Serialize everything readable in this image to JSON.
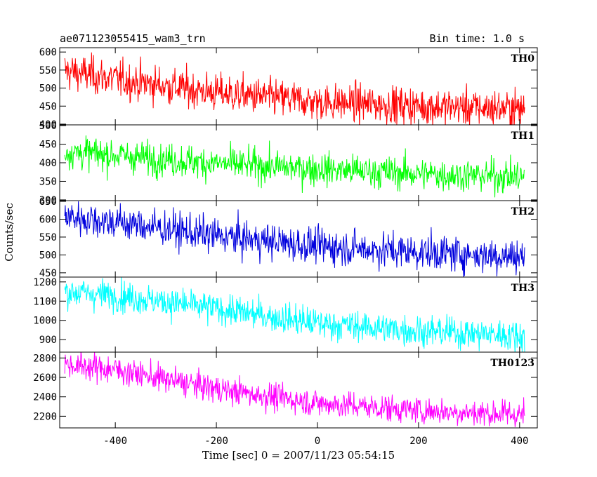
{
  "chart_data": {
    "type": "line",
    "title": "ae071123055415_wam3_trn",
    "bin_time_label": "Bin time: 1.0 s",
    "xlabel": "Time [sec] 0 = 2007/11/23 05:54:15",
    "ylabel": "Counts/sec",
    "xlim": [
      -510,
      435
    ],
    "xticks": [
      -400,
      -200,
      0,
      200,
      400
    ],
    "x_start": -500,
    "x_end": 410,
    "panels": [
      {
        "name": "TH0",
        "color": "#ff0000",
        "ylim": [
          398,
          612
        ],
        "yticks": [
          400,
          450,
          500,
          550,
          600
        ],
        "trend": [
          {
            "x": -500,
            "y": 548
          },
          {
            "x": -400,
            "y": 525
          },
          {
            "x": -200,
            "y": 487
          },
          {
            "x": 0,
            "y": 462
          },
          {
            "x": 200,
            "y": 450
          },
          {
            "x": 410,
            "y": 442
          }
        ],
        "noise": 26
      },
      {
        "name": "TH1",
        "color": "#00ff00",
        "ylim": [
          298,
          502
        ],
        "yticks": [
          300,
          350,
          400,
          450,
          500
        ],
        "trend": [
          {
            "x": -500,
            "y": 430
          },
          {
            "x": -400,
            "y": 420
          },
          {
            "x": -200,
            "y": 398
          },
          {
            "x": 0,
            "y": 383
          },
          {
            "x": 200,
            "y": 370
          },
          {
            "x": 410,
            "y": 362
          }
        ],
        "noise": 22
      },
      {
        "name": "TH2",
        "color": "#0000dd",
        "ylim": [
          438,
          652
        ],
        "yticks": [
          450,
          500,
          550,
          600,
          650
        ],
        "trend": [
          {
            "x": -500,
            "y": 608
          },
          {
            "x": -400,
            "y": 592
          },
          {
            "x": -200,
            "y": 553
          },
          {
            "x": 0,
            "y": 525
          },
          {
            "x": 200,
            "y": 508
          },
          {
            "x": 410,
            "y": 495
          }
        ],
        "noise": 25
      },
      {
        "name": "TH3",
        "color": "#00ffff",
        "ylim": [
          835,
          1225
        ],
        "yticks": [
          900,
          1000,
          1100,
          1200
        ],
        "trend": [
          {
            "x": -500,
            "y": 1150
          },
          {
            "x": -400,
            "y": 1130
          },
          {
            "x": -200,
            "y": 1060
          },
          {
            "x": 0,
            "y": 985
          },
          {
            "x": 200,
            "y": 945
          },
          {
            "x": 410,
            "y": 920
          }
        ],
        "noise": 40
      },
      {
        "name": "TH0123",
        "color": "#ff00ff",
        "ylim": [
          2080,
          2860
        ],
        "yticks": [
          2200,
          2400,
          2600,
          2800
        ],
        "trend": [
          {
            "x": -500,
            "y": 2735
          },
          {
            "x": -400,
            "y": 2680
          },
          {
            "x": -200,
            "y": 2480
          },
          {
            "x": 0,
            "y": 2335
          },
          {
            "x": 200,
            "y": 2260
          },
          {
            "x": 410,
            "y": 2215
          }
        ],
        "noise": 70
      }
    ]
  }
}
